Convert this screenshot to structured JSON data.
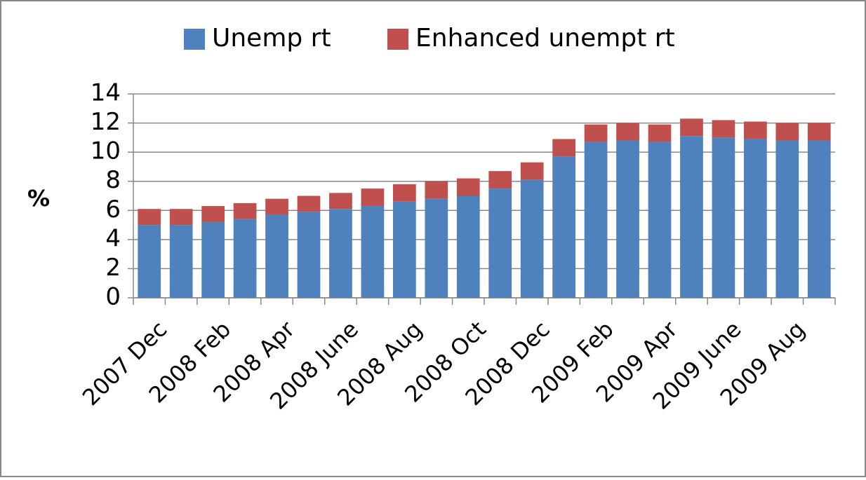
{
  "chart_data": {
    "type": "stacked_bar",
    "categories": [
      "2007 Dec",
      null,
      "2008 Feb",
      null,
      "2008 Apr",
      null,
      "2008 June",
      null,
      "2008 Aug",
      null,
      "2008 Oct",
      null,
      "2008 Dec",
      null,
      "2009 Feb",
      null,
      "2009 Apr",
      null,
      "2009 June",
      null,
      "2009 Aug",
      null
    ],
    "series": [
      {
        "name": "Unemp rt",
        "color": "#4f81bd",
        "values": [
          5.0,
          5.0,
          5.2,
          5.4,
          5.7,
          5.9,
          6.1,
          6.3,
          6.6,
          6.8,
          7.0,
          7.5,
          8.1,
          9.7,
          10.7,
          10.8,
          10.7,
          11.1,
          11.0,
          10.9,
          10.8,
          10.8
        ]
      },
      {
        "name": "Enhanced unempt rt",
        "color": "#c0504d",
        "values": [
          1.1,
          1.1,
          1.1,
          1.1,
          1.1,
          1.1,
          1.1,
          1.2,
          1.2,
          1.2,
          1.2,
          1.2,
          1.2,
          1.2,
          1.2,
          1.2,
          1.2,
          1.2,
          1.2,
          1.2,
          1.2,
          1.2
        ]
      }
    ],
    "y_label": "%",
    "ylim": [
      0,
      14
    ],
    "yticks": [
      0,
      2,
      4,
      6,
      8,
      10,
      12,
      14
    ],
    "grid": true,
    "legend": "top"
  }
}
